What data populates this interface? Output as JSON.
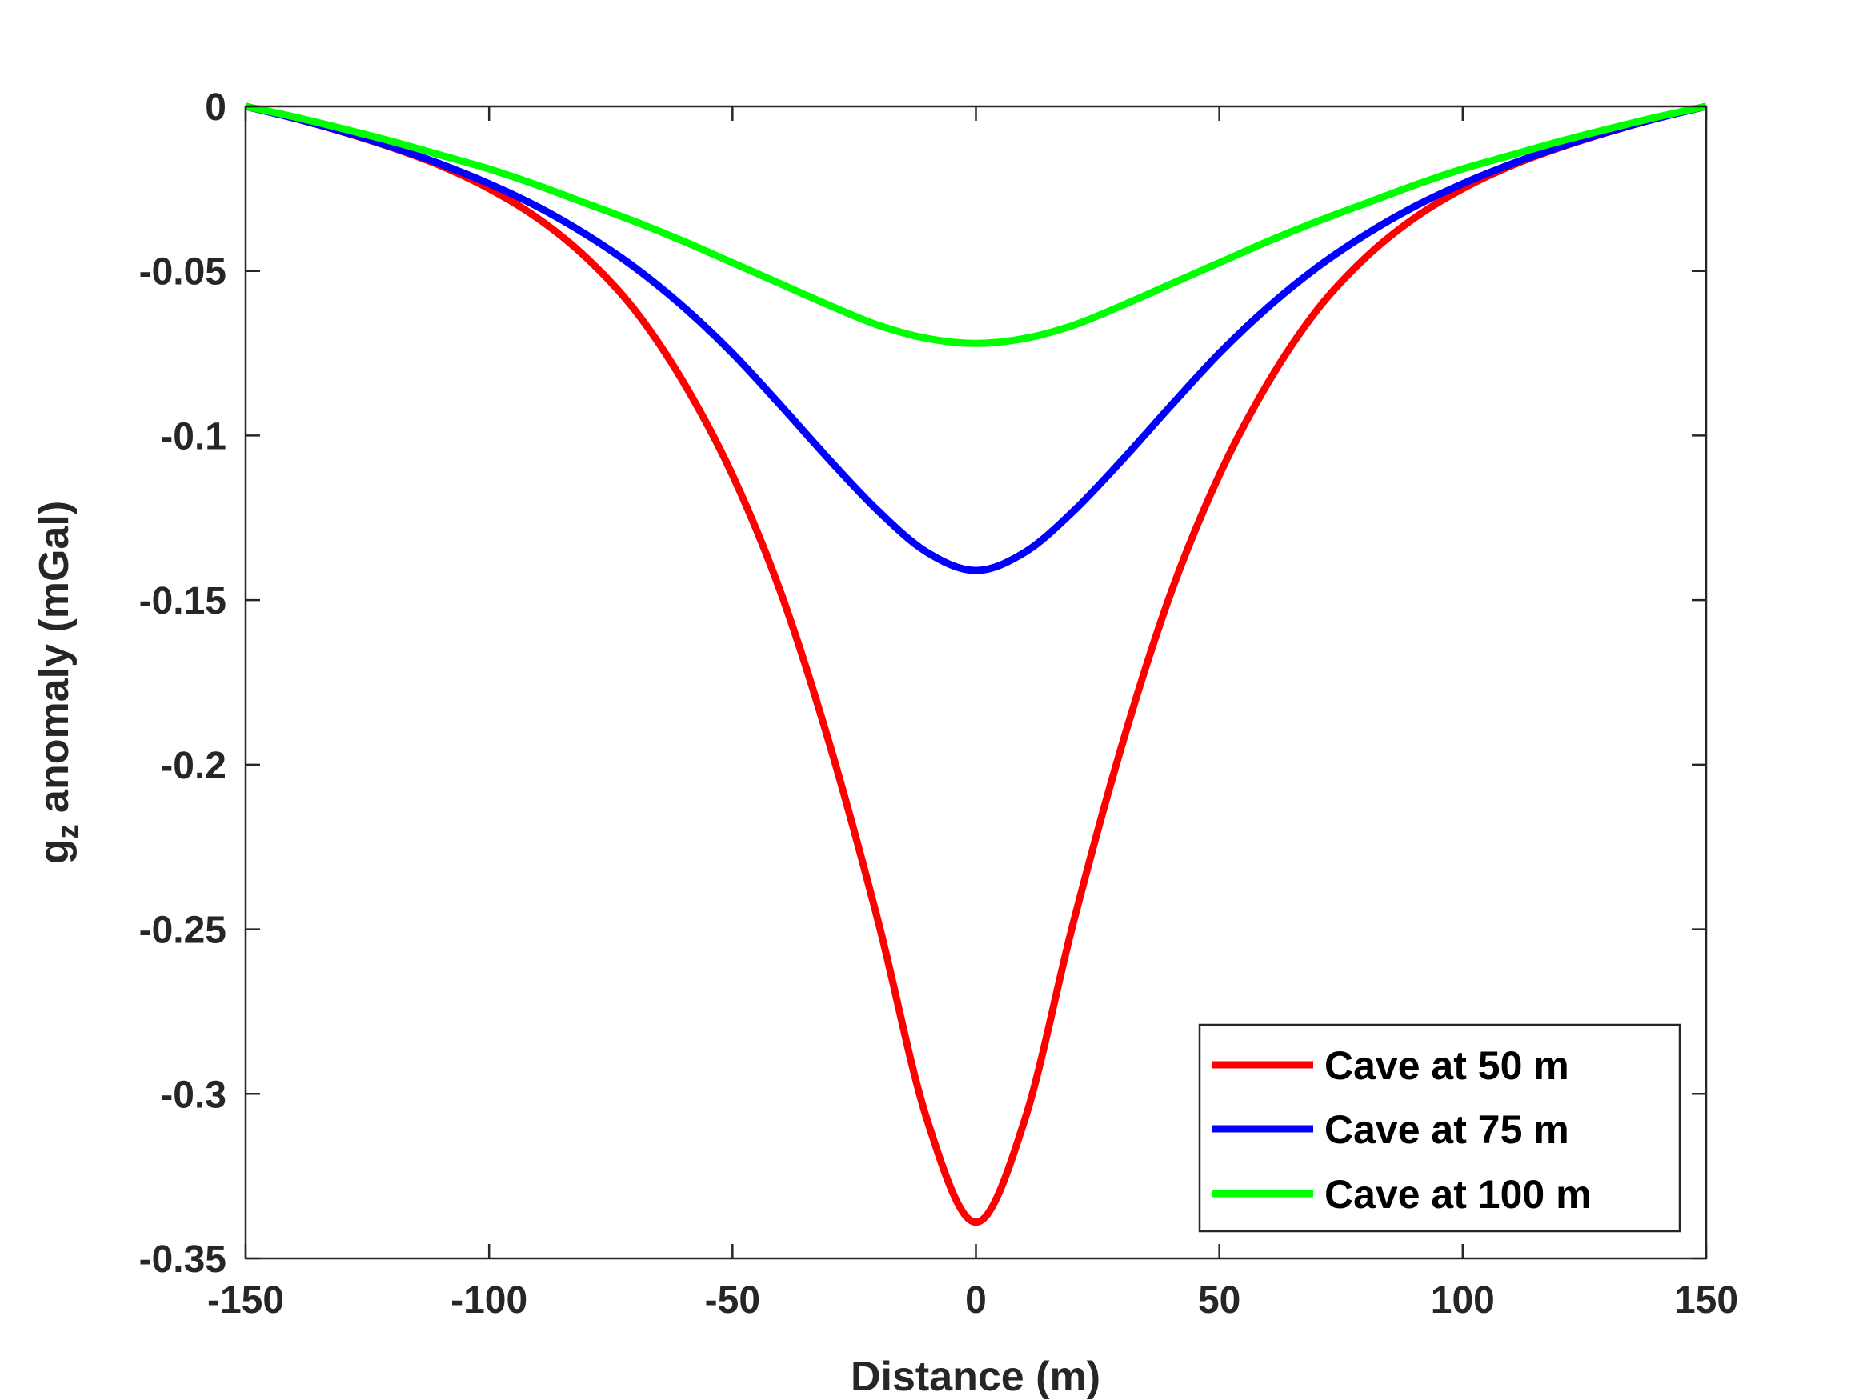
{
  "chart_data": {
    "type": "line",
    "title": "",
    "xlabel": "Distance (m)",
    "ylabel": {
      "main": "g",
      "subscript": "z",
      "rest": " anomaly (mGal)"
    },
    "xlim": [
      -150,
      150
    ],
    "ylim": [
      -0.35,
      0
    ],
    "xticks": [
      -150,
      -100,
      -50,
      0,
      50,
      100,
      150
    ],
    "xtick_labels": [
      "-150",
      "-100",
      "-50",
      "0",
      "50",
      "100",
      "150"
    ],
    "yticks": [
      0,
      -0.05,
      -0.1,
      -0.15,
      -0.2,
      -0.25,
      -0.3,
      -0.35
    ],
    "ytick_labels": [
      "0",
      "-0.05",
      "-0.1",
      "-0.15",
      "-0.2",
      "-0.25",
      "-0.3",
      "-0.35"
    ],
    "grid": false,
    "legend_position": "bottom-right",
    "x": [
      -150,
      -140,
      -130,
      -120,
      -110,
      -100,
      -90,
      -80,
      -70,
      -60,
      -50,
      -40,
      -30,
      -20,
      -10,
      0,
      10,
      20,
      30,
      40,
      50,
      60,
      70,
      80,
      90,
      100,
      110,
      120,
      130,
      140,
      150
    ],
    "series": [
      {
        "name": "Cave at 50 m",
        "color": "#ff0000",
        "values": [
          0,
          -0.0036,
          -0.0078,
          -0.0125,
          -0.018,
          -0.025,
          -0.034,
          -0.046,
          -0.062,
          -0.084,
          -0.112,
          -0.148,
          -0.194,
          -0.248,
          -0.308,
          -0.339,
          -0.308,
          -0.248,
          -0.194,
          -0.148,
          -0.112,
          -0.084,
          -0.062,
          -0.046,
          -0.034,
          -0.025,
          -0.018,
          -0.0125,
          -0.0078,
          -0.0036,
          0
        ]
      },
      {
        "name": "Cave at 75 m",
        "color": "#0000ff",
        "values": [
          0,
          -0.0036,
          -0.0077,
          -0.0123,
          -0.0175,
          -0.0235,
          -0.0305,
          -0.039,
          -0.049,
          -0.061,
          -0.075,
          -0.091,
          -0.1075,
          -0.123,
          -0.1355,
          -0.141,
          -0.1355,
          -0.123,
          -0.1075,
          -0.091,
          -0.075,
          -0.061,
          -0.049,
          -0.039,
          -0.0305,
          -0.0235,
          -0.0175,
          -0.0123,
          -0.0077,
          -0.0036,
          0
        ]
      },
      {
        "name": "Cave at 100 m",
        "color": "#00ff00",
        "values": [
          0,
          -0.0032,
          -0.0068,
          -0.0106,
          -0.0148,
          -0.019,
          -0.024,
          -0.0295,
          -0.035,
          -0.041,
          -0.0475,
          -0.054,
          -0.0605,
          -0.0665,
          -0.0705,
          -0.072,
          -0.0705,
          -0.0665,
          -0.0605,
          -0.054,
          -0.0475,
          -0.041,
          -0.035,
          -0.0295,
          -0.024,
          -0.019,
          -0.0148,
          -0.0106,
          -0.0068,
          -0.0032,
          0
        ]
      }
    ]
  }
}
